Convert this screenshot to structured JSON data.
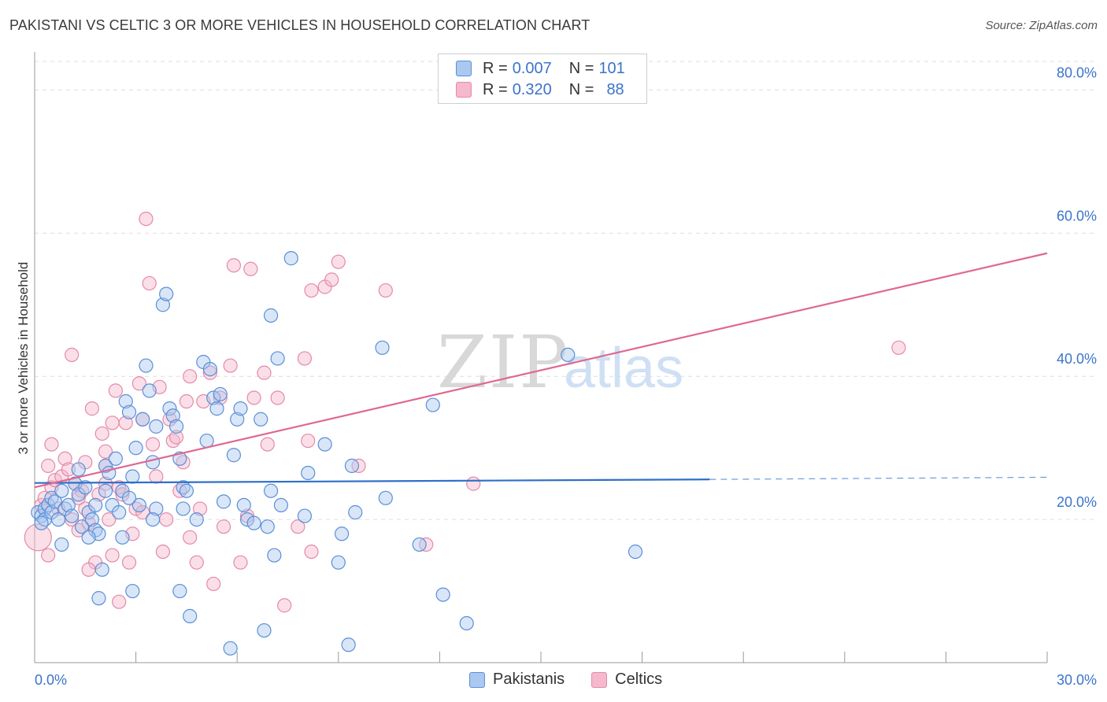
{
  "title": "PAKISTANI VS CELTIC 3 OR MORE VEHICLES IN HOUSEHOLD CORRELATION CHART",
  "source": "Source: ZipAtlas.com",
  "watermark": {
    "zip": "ZIP",
    "atlas": "atlas"
  },
  "colors": {
    "pakistani_fill": "#aac8f0",
    "pakistani_stroke": "#5b8fd6",
    "pakistani_line": "#2f6fc8",
    "celtic_fill": "#f5b8cc",
    "celtic_stroke": "#e58aa8",
    "celtic_line": "#e0688f",
    "axis_text": "#3b74c9",
    "grid": "#dddddd"
  },
  "legend": {
    "rows": [
      {
        "r_label": "R =",
        "r_value": "0.007",
        "n_label": "N =",
        "n_value": "101"
      },
      {
        "r_label": "R =",
        "r_value": "0.320",
        "n_label": "N =",
        "n_value": "88"
      }
    ],
    "bottom": [
      "Pakistanis",
      "Celtics"
    ]
  },
  "chart_data": {
    "type": "scatter",
    "title": "PAKISTANI VS CELTIC 3 OR MORE VEHICLES IN HOUSEHOLD CORRELATION CHART",
    "xlabel": "",
    "ylabel": "3 or more Vehicles in Household",
    "xlim": [
      0,
      30
    ],
    "ylim": [
      0,
      84
    ],
    "x_tick_labels": [
      "0.0%",
      "30.0%"
    ],
    "y_ticks": [
      20,
      40,
      60,
      80
    ],
    "y_tick_labels": [
      "20.0%",
      "40.0%",
      "60.0%",
      "80.0%"
    ],
    "grid": true,
    "legend_position": "top-center",
    "series": [
      {
        "name": "Pakistanis",
        "trend": {
          "x_start": 0,
          "y_start": 25.1,
          "x_solid_end": 20.0,
          "y_solid_end": 25.6,
          "x_end": 30.0,
          "y_end": 25.9
        },
        "points": [
          [
            0.1,
            21
          ],
          [
            0.2,
            20.5
          ],
          [
            0.3,
            21.5
          ],
          [
            0.3,
            20
          ],
          [
            0.4,
            22
          ],
          [
            0.5,
            21
          ],
          [
            0.5,
            23
          ],
          [
            0.6,
            22.5
          ],
          [
            0.7,
            20
          ],
          [
            0.8,
            24
          ],
          [
            0.9,
            21.5
          ],
          [
            1.0,
            22
          ],
          [
            1.1,
            20.5
          ],
          [
            1.2,
            25
          ],
          [
            1.3,
            27
          ],
          [
            1.3,
            23.5
          ],
          [
            1.4,
            19
          ],
          [
            1.5,
            24.5
          ],
          [
            1.6,
            21
          ],
          [
            1.7,
            20
          ],
          [
            1.8,
            18.5
          ],
          [
            1.8,
            22
          ],
          [
            1.9,
            18
          ],
          [
            2.0,
            13
          ],
          [
            2.1,
            27.5
          ],
          [
            2.1,
            24
          ],
          [
            2.2,
            26.5
          ],
          [
            2.3,
            22
          ],
          [
            2.4,
            28.5
          ],
          [
            2.5,
            21
          ],
          [
            2.6,
            17.5
          ],
          [
            2.6,
            24
          ],
          [
            2.7,
            36.5
          ],
          [
            2.8,
            35
          ],
          [
            2.9,
            26
          ],
          [
            3.0,
            30
          ],
          [
            3.1,
            22
          ],
          [
            3.2,
            34
          ],
          [
            3.3,
            41.5
          ],
          [
            3.4,
            38
          ],
          [
            3.5,
            28
          ],
          [
            3.6,
            33
          ],
          [
            3.6,
            21.5
          ],
          [
            3.8,
            50
          ],
          [
            3.9,
            51.5
          ],
          [
            4.0,
            35.5
          ],
          [
            4.1,
            34.5
          ],
          [
            4.2,
            33
          ],
          [
            4.3,
            28.5
          ],
          [
            4.4,
            24.5
          ],
          [
            4.4,
            21.5
          ],
          [
            4.5,
            24
          ],
          [
            4.6,
            6.5
          ],
          [
            4.8,
            20
          ],
          [
            5.0,
            42
          ],
          [
            5.1,
            31
          ],
          [
            5.2,
            41
          ],
          [
            5.3,
            37
          ],
          [
            5.4,
            35.5
          ],
          [
            5.5,
            37.5
          ],
          [
            5.6,
            22.5
          ],
          [
            5.8,
            2
          ],
          [
            5.9,
            29
          ],
          [
            6.0,
            34
          ],
          [
            6.1,
            35.5
          ],
          [
            6.3,
            20
          ],
          [
            6.5,
            19.5
          ],
          [
            6.7,
            34
          ],
          [
            6.8,
            4.5
          ],
          [
            6.9,
            19
          ],
          [
            7.0,
            48.5
          ],
          [
            7.0,
            24
          ],
          [
            7.1,
            15
          ],
          [
            7.2,
            42.5
          ],
          [
            7.3,
            22
          ],
          [
            7.6,
            56.5
          ],
          [
            8.0,
            20.5
          ],
          [
            8.1,
            26.5
          ],
          [
            8.6,
            30.5
          ],
          [
            9.0,
            14
          ],
          [
            9.1,
            18
          ],
          [
            9.4,
            27.5
          ],
          [
            9.5,
            21
          ],
          [
            9.3,
            2.5
          ],
          [
            10.3,
            44
          ],
          [
            10.4,
            23
          ],
          [
            11.4,
            16.5
          ],
          [
            11.8,
            36
          ],
          [
            12.1,
            9.5
          ],
          [
            12.8,
            5.5
          ],
          [
            15.8,
            43
          ],
          [
            17.8,
            15.5
          ],
          [
            1.9,
            9
          ],
          [
            2.9,
            10
          ],
          [
            4.3,
            10
          ],
          [
            0.2,
            19.5
          ],
          [
            0.8,
            16.5
          ],
          [
            1.6,
            17.5
          ],
          [
            2.8,
            23
          ],
          [
            3.5,
            20
          ],
          [
            6.2,
            22
          ]
        ]
      },
      {
        "name": "Celtics",
        "trend": {
          "x_start": 0,
          "y_start": 24.5,
          "x_end": 30.0,
          "y_end": 57.2
        },
        "points": [
          [
            0.1,
            17.5
          ],
          [
            0.2,
            22
          ],
          [
            0.3,
            23
          ],
          [
            0.4,
            27.5
          ],
          [
            0.5,
            24.5
          ],
          [
            0.5,
            30.5
          ],
          [
            0.6,
            25.5
          ],
          [
            0.7,
            21.5
          ],
          [
            0.8,
            26
          ],
          [
            0.9,
            28.5
          ],
          [
            1.0,
            27
          ],
          [
            1.1,
            20
          ],
          [
            1.1,
            43
          ],
          [
            1.2,
            25
          ],
          [
            1.3,
            18.5
          ],
          [
            1.4,
            24
          ],
          [
            1.5,
            28
          ],
          [
            1.5,
            21.5
          ],
          [
            1.6,
            19.5
          ],
          [
            1.7,
            35.5
          ],
          [
            1.8,
            14
          ],
          [
            1.9,
            23.5
          ],
          [
            2.0,
            32
          ],
          [
            2.1,
            29.5
          ],
          [
            2.1,
            27.5
          ],
          [
            2.2,
            20
          ],
          [
            2.3,
            15
          ],
          [
            2.3,
            33.5
          ],
          [
            2.4,
            38
          ],
          [
            2.5,
            24.5
          ],
          [
            2.5,
            8.5
          ],
          [
            2.6,
            23.5
          ],
          [
            2.7,
            33.5
          ],
          [
            2.8,
            14
          ],
          [
            2.9,
            18
          ],
          [
            3.0,
            21.5
          ],
          [
            3.1,
            39
          ],
          [
            3.2,
            34
          ],
          [
            3.3,
            62
          ],
          [
            3.4,
            53
          ],
          [
            3.5,
            30.5
          ],
          [
            3.6,
            26
          ],
          [
            3.7,
            38.5
          ],
          [
            3.8,
            15.5
          ],
          [
            3.9,
            20
          ],
          [
            4.0,
            34
          ],
          [
            4.1,
            31
          ],
          [
            4.2,
            31.5
          ],
          [
            4.3,
            24
          ],
          [
            4.4,
            28
          ],
          [
            4.5,
            36.5
          ],
          [
            4.6,
            40
          ],
          [
            4.6,
            17.5
          ],
          [
            4.8,
            14
          ],
          [
            4.9,
            21.5
          ],
          [
            5.0,
            36.5
          ],
          [
            5.2,
            40.5
          ],
          [
            5.3,
            11
          ],
          [
            5.5,
            37
          ],
          [
            5.6,
            19
          ],
          [
            5.8,
            41.5
          ],
          [
            5.9,
            55.5
          ],
          [
            6.1,
            14
          ],
          [
            6.3,
            20.5
          ],
          [
            6.4,
            55
          ],
          [
            6.5,
            37
          ],
          [
            6.8,
            40.5
          ],
          [
            6.9,
            30.5
          ],
          [
            7.2,
            37
          ],
          [
            7.4,
            8
          ],
          [
            7.8,
            19
          ],
          [
            8.0,
            42.5
          ],
          [
            8.1,
            31
          ],
          [
            8.2,
            15.5
          ],
          [
            8.2,
            52
          ],
          [
            8.6,
            52.5
          ],
          [
            8.8,
            53.5
          ],
          [
            9.0,
            56
          ],
          [
            9.6,
            27.5
          ],
          [
            10.4,
            52
          ],
          [
            11.6,
            16.5
          ],
          [
            13.0,
            25
          ],
          [
            25.6,
            44
          ],
          [
            1.3,
            23
          ],
          [
            2.1,
            25
          ],
          [
            3.2,
            21
          ],
          [
            0.4,
            15
          ],
          [
            1.6,
            13
          ]
        ]
      }
    ]
  }
}
